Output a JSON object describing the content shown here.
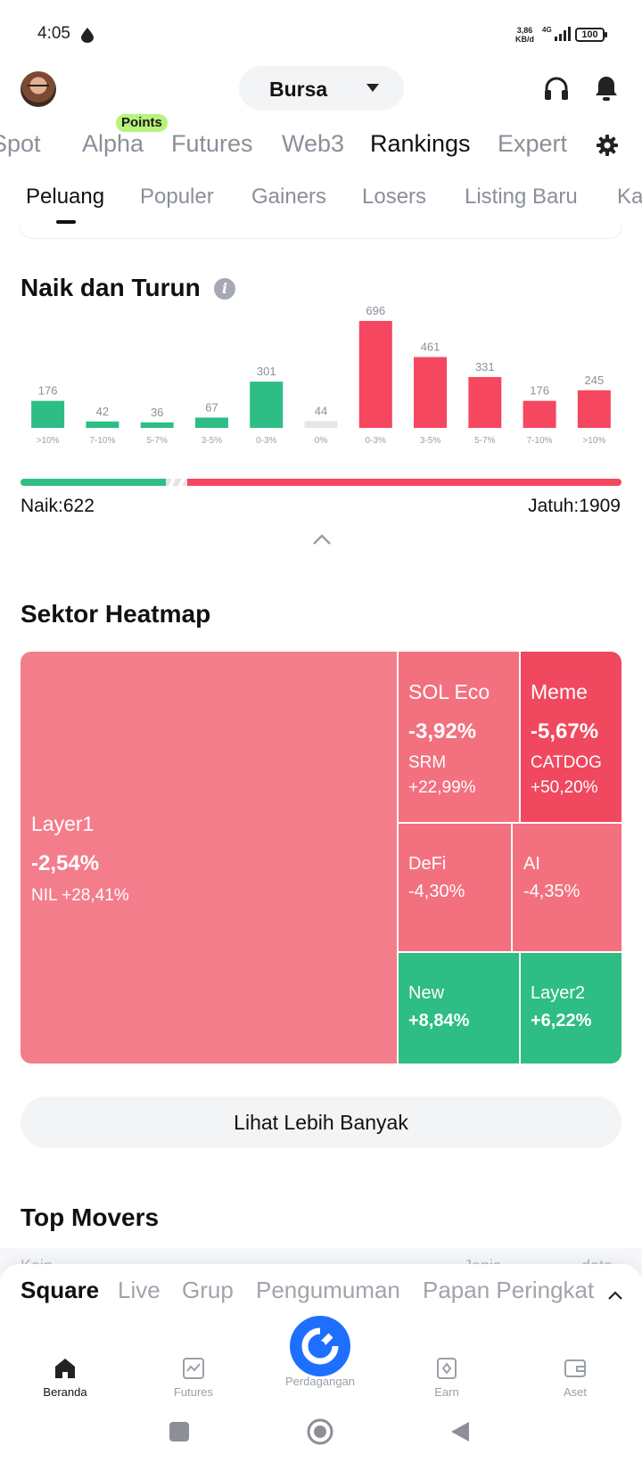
{
  "status_bar": {
    "time": "4:05",
    "net_speed_top": "3,86",
    "net_speed_bottom": "KB/d",
    "network": "4G",
    "battery": "100"
  },
  "header": {
    "exchange_label": "Bursa"
  },
  "category_tabs": [
    {
      "label": "Spot",
      "active": false
    },
    {
      "label": "Alpha",
      "active": false
    },
    {
      "label": "Futures",
      "active": false
    },
    {
      "label": "Web3",
      "active": false
    },
    {
      "label": "Rankings",
      "active": true
    },
    {
      "label": "Expert",
      "active": false
    }
  ],
  "points_badge": "Points",
  "sub_tabs": [
    {
      "label": "Peluang",
      "active": true
    },
    {
      "label": "Populer",
      "active": false
    },
    {
      "label": "Gainers",
      "active": false
    },
    {
      "label": "Losers",
      "active": false
    },
    {
      "label": "Listing Baru",
      "active": false
    },
    {
      "label": "Ka",
      "active": false
    }
  ],
  "updown": {
    "title": "Naik dan Turun",
    "naik_text": "Naik:622",
    "jatuh_text": "Jatuh:1909"
  },
  "chart_data": {
    "type": "bar",
    "categories": [
      ">10%",
      "7-10%",
      "5-7%",
      "3-5%",
      "0-3%",
      "0%",
      "0-3%",
      "3-5%",
      "5-7%",
      "7-10%",
      ">10%"
    ],
    "values": [
      176,
      42,
      36,
      67,
      301,
      44,
      696,
      461,
      331,
      176,
      245
    ],
    "bar_colors": [
      "#2ebd85",
      "#2ebd85",
      "#2ebd85",
      "#2ebd85",
      "#2ebd85",
      "#e4e6ea",
      "#f5475f",
      "#f5475f",
      "#f5475f",
      "#f5475f",
      "#f5475f"
    ],
    "title": "",
    "xlabel": "",
    "ylabel": "",
    "ylim": [
      0,
      696
    ],
    "grid": false,
    "naik_total": 622,
    "jatuh_total": 1909
  },
  "heatmap": {
    "title": "Sektor Heatmap",
    "cells": {
      "layer1": {
        "name": "Layer1",
        "change": "-2,54%",
        "sub": "NIL +28,41%"
      },
      "sol_eco": {
        "name": "SOL Eco",
        "change": "-3,92%",
        "sub_coin": "SRM",
        "sub_change": "+22,99%"
      },
      "meme": {
        "name": "Meme",
        "change": "-5,67%",
        "sub_coin": "CATDOG",
        "sub_change": "+50,20%"
      },
      "defi": {
        "name": "DeFi",
        "change": "-4,30%"
      },
      "ai": {
        "name": "AI",
        "change": "-4,35%"
      },
      "new": {
        "name": "New",
        "change": "+8,84%"
      },
      "layer2": {
        "name": "Layer2",
        "change": "+6,22%"
      }
    }
  },
  "more_button": "Lihat Lebih Banyak",
  "top_movers": {
    "title": "Top Movers",
    "col_koin": "Koin",
    "col_jenis": "Jenis",
    "col_data": "data"
  },
  "feed_tabs": [
    {
      "label": "Square",
      "active": true
    },
    {
      "label": "Live",
      "active": false
    },
    {
      "label": "Grup",
      "active": false
    },
    {
      "label": "Pengumuman",
      "active": false
    },
    {
      "label": "Papan Peringkat",
      "active": false
    }
  ],
  "bottom_nav": {
    "home": "Beranda",
    "futures": "Futures",
    "trade": "Perdagangan",
    "earn": "Earn",
    "assets": "Aset"
  },
  "colors": {
    "green": "#2ebd85",
    "red": "#f5475f",
    "heat_light_red": "#f47d8c",
    "heat_mid_red": "#f3707f",
    "heat_strong_red": "#f0485e",
    "brand_blue": "#1f6fff"
  },
  "icons": {
    "status": "water-drop-icon",
    "support": "headset-icon",
    "notifications": "bell-icon",
    "settings": "gear-icon",
    "info": "info-icon",
    "collapse": "chevron-up-icon"
  }
}
